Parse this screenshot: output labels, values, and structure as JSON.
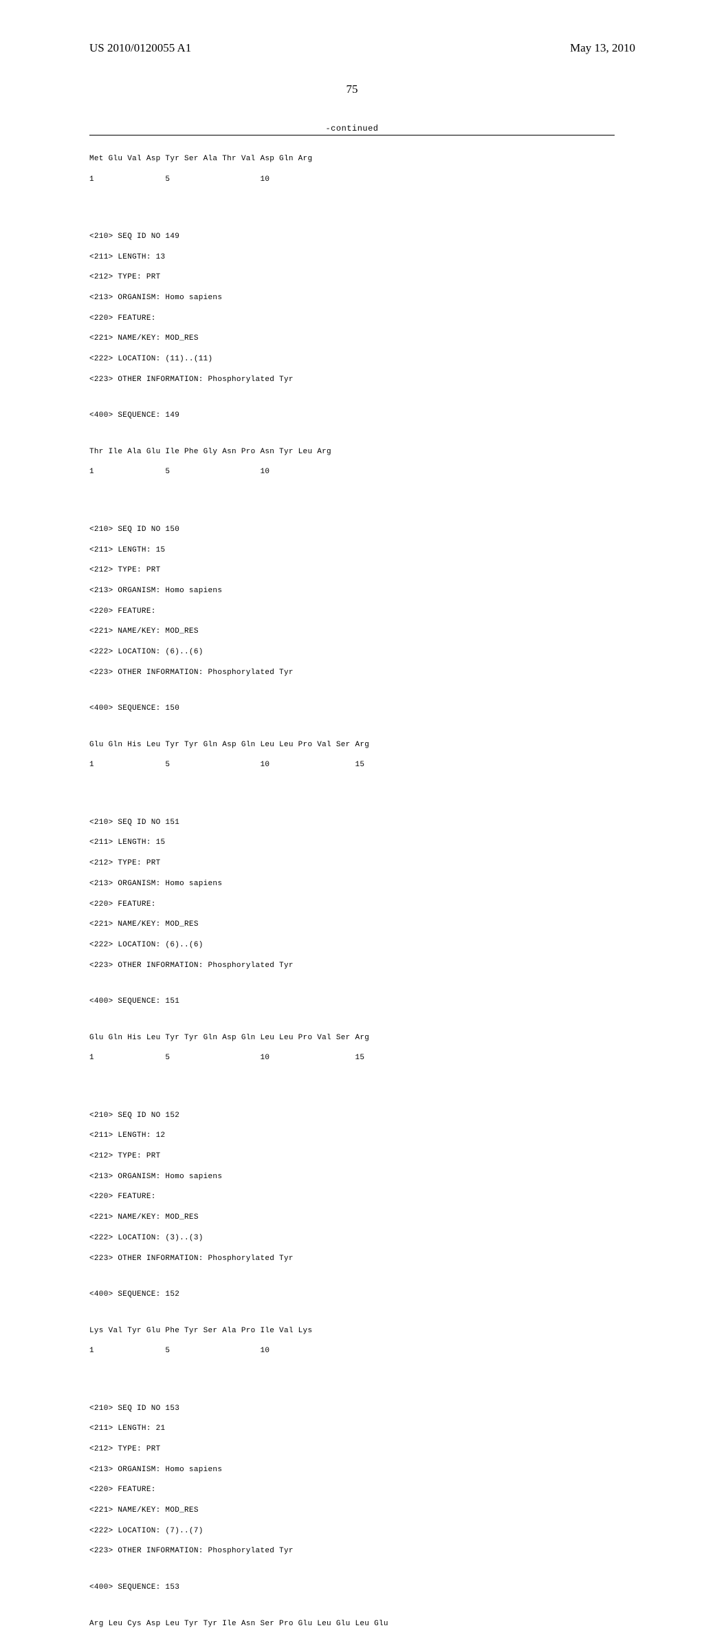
{
  "header": {
    "pub_number": "US 2010/0120055 A1",
    "pub_date": "May 13, 2010"
  },
  "page_number": "75",
  "continued_label": "-continued",
  "sequences": [
    {
      "residues": "Met Glu Val Asp Tyr Ser Ala Thr Val Asp Gln Arg",
      "ruler": "1               5                   10"
    }
  ],
  "entries": [
    {
      "seq_id": "<210> SEQ ID NO 149",
      "length": "<211> LENGTH: 13",
      "type": "<212> TYPE: PRT",
      "organism": "<213> ORGANISM: Homo sapiens",
      "feature": "<220> FEATURE:",
      "name_key": "<221> NAME/KEY: MOD_RES",
      "location": "<222> LOCATION: (11)..(11)",
      "other_info": "<223> OTHER INFORMATION: Phosphorylated Tyr",
      "seq_header": "<400> SEQUENCE: 149",
      "residues": "Thr Ile Ala Glu Ile Phe Gly Asn Pro Asn Tyr Leu Arg",
      "ruler": "1               5                   10"
    },
    {
      "seq_id": "<210> SEQ ID NO 150",
      "length": "<211> LENGTH: 15",
      "type": "<212> TYPE: PRT",
      "organism": "<213> ORGANISM: Homo sapiens",
      "feature": "<220> FEATURE:",
      "name_key": "<221> NAME/KEY: MOD_RES",
      "location": "<222> LOCATION: (6)..(6)",
      "other_info": "<223> OTHER INFORMATION: Phosphorylated Tyr",
      "seq_header": "<400> SEQUENCE: 150",
      "residues": "Glu Gln His Leu Tyr Tyr Gln Asp Gln Leu Leu Pro Val Ser Arg",
      "ruler": "1               5                   10                  15"
    },
    {
      "seq_id": "<210> SEQ ID NO 151",
      "length": "<211> LENGTH: 15",
      "type": "<212> TYPE: PRT",
      "organism": "<213> ORGANISM: Homo sapiens",
      "feature": "<220> FEATURE:",
      "name_key": "<221> NAME/KEY: MOD_RES",
      "location": "<222> LOCATION: (6)..(6)",
      "other_info": "<223> OTHER INFORMATION: Phosphorylated Tyr",
      "seq_header": "<400> SEQUENCE: 151",
      "residues": "Glu Gln His Leu Tyr Tyr Gln Asp Gln Leu Leu Pro Val Ser Arg",
      "ruler": "1               5                   10                  15"
    },
    {
      "seq_id": "<210> SEQ ID NO 152",
      "length": "<211> LENGTH: 12",
      "type": "<212> TYPE: PRT",
      "organism": "<213> ORGANISM: Homo sapiens",
      "feature": "<220> FEATURE:",
      "name_key": "<221> NAME/KEY: MOD_RES",
      "location": "<222> LOCATION: (3)..(3)",
      "other_info": "<223> OTHER INFORMATION: Phosphorylated Tyr",
      "seq_header": "<400> SEQUENCE: 152",
      "residues": "Lys Val Tyr Glu Phe Tyr Ser Ala Pro Ile Val Lys",
      "ruler": "1               5                   10"
    },
    {
      "seq_id": "<210> SEQ ID NO 153",
      "length": "<211> LENGTH: 21",
      "type": "<212> TYPE: PRT",
      "organism": "<213> ORGANISM: Homo sapiens",
      "feature": "<220> FEATURE:",
      "name_key": "<221> NAME/KEY: MOD_RES",
      "location": "<222> LOCATION: (7)..(7)",
      "other_info": "<223> OTHER INFORMATION: Phosphorylated Tyr",
      "seq_header": "<400> SEQUENCE: 153",
      "residues": "Arg Leu Cys Asp Leu Tyr Tyr Ile Asn Ser Pro Glu Leu Glu Leu Glu",
      "ruler": ""
    }
  ]
}
